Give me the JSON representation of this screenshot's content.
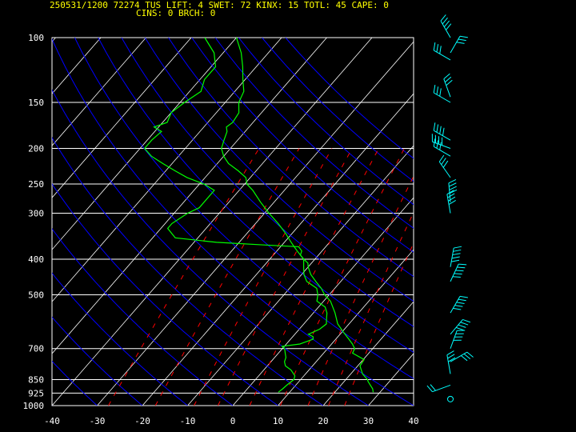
{
  "header": {
    "line1": "250531/1200 72274   TUS   LIFT:    4 SWET:    72 KINX:    15 TOTL:    45 CAPE:    0",
    "line2": "CINS:    0 BRCH:    0"
  },
  "colors": {
    "isobar": "#ffffff",
    "isotherm": "#ffffff",
    "dry_adiabat": "#0000ff",
    "mixing_ratio": "#ff0000",
    "temperature": "#00ff00",
    "dewpoint": "#00ff00",
    "wind": "#00ffff",
    "header": "#ffff00",
    "ticks": "#ffffff"
  },
  "chart_data": {
    "type": "line",
    "title": "",
    "xlabel": "",
    "ylabel": "",
    "xlim": [
      -40,
      40
    ],
    "ylim": [
      1000,
      100
    ],
    "y_scale": "log",
    "x_ticks": [
      "-40",
      "-30",
      "-20",
      "-10",
      "0",
      "10",
      "20",
      "30",
      "40"
    ],
    "pressure_ticks": [
      "100",
      "150",
      "200",
      "250",
      "300",
      "400",
      "500",
      "700",
      "850",
      "925",
      "1000"
    ],
    "grid": true,
    "series": [
      {
        "role": "temperature",
        "pressure": [
          920,
          900,
          860,
          850,
          820,
          780,
          750,
          720,
          700,
          680,
          660,
          630,
          600,
          560,
          520,
          500,
          480,
          460,
          440,
          420,
          410,
          400,
          390,
          380,
          370,
          360,
          350,
          340,
          320,
          300,
          280,
          260,
          250,
          240,
          230,
          220,
          210,
          200,
          190,
          180,
          175,
          170,
          160,
          150,
          140,
          130,
          120,
          110,
          100
        ],
        "temperature": [
          28.5,
          27.7,
          25.3,
          24.8,
          22.6,
          20.5,
          20.2,
          16.4,
          16.0,
          14.6,
          12.9,
          10.2,
          7.5,
          4.8,
          1.5,
          -1.0,
          -3.0,
          -5.5,
          -8.0,
          -10.0,
          -10.8,
          -12.5,
          -14.0,
          -15.5,
          -17.0,
          -18.5,
          -20.0,
          -21.5,
          -25.0,
          -29.0,
          -33.0,
          -37.0,
          -39.5,
          -41.0,
          -44.0,
          -47.5,
          -50.0,
          -52.0,
          -53.0,
          -54.0,
          -55.0,
          -54.5,
          -55.0,
          -57.0,
          -58.0,
          -60.5,
          -63.0,
          -66.0,
          -70.0
        ]
      },
      {
        "role": "dewpoint",
        "pressure": [
          920,
          900,
          880,
          850,
          830,
          800,
          780,
          760,
          740,
          720,
          700,
          690,
          680,
          660,
          650,
          640,
          620,
          600,
          580,
          560,
          540,
          520,
          500,
          480,
          460,
          440,
          420,
          400,
          390,
          380,
          370,
          366,
          360,
          350,
          330,
          320,
          300,
          290,
          260,
          250,
          240,
          230,
          220,
          210,
          200,
          190,
          180,
          175,
          170,
          160,
          150,
          140,
          130,
          120,
          110,
          100
        ],
        "dewpoint": [
          7.5,
          7.8,
          8.0,
          8.5,
          8.0,
          6.0,
          4.0,
          3.0,
          2.5,
          1.5,
          0.5,
          -0.5,
          3.0,
          5.0,
          4.5,
          3.0,
          4.5,
          5.0,
          4.0,
          3.0,
          1.5,
          -1.5,
          -2.5,
          -4.0,
          -7.5,
          -9.5,
          -11.0,
          -12.5,
          -14.0,
          -14.5,
          -16.0,
          -24.0,
          -35.0,
          -45.0,
          -48.5,
          -48.5,
          -47.0,
          -45.5,
          -45.5,
          -49.0,
          -54.0,
          -58.0,
          -62.0,
          -66.0,
          -69.0,
          -69.0,
          -68.5,
          -71.0,
          -69.0,
          -70.0,
          -69.0,
          -67.5,
          -69.0,
          -69.0,
          -72.0,
          -77.0
        ]
      }
    ],
    "wind_barbs_present": true
  }
}
